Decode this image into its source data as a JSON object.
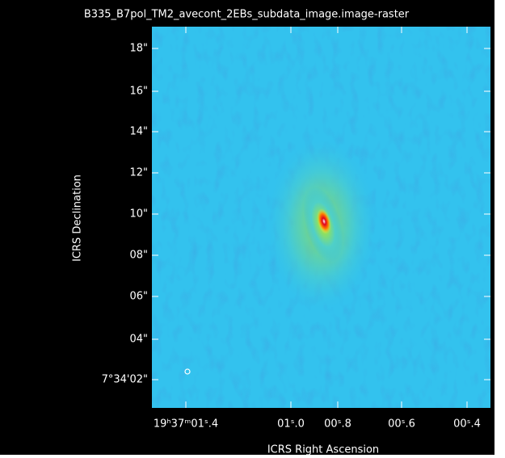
{
  "title": "B335_B7pol_TM2_avecont_2EBs_subdata_image.image-raster",
  "y_axis": {
    "label": "ICRS Declination",
    "ticks": [
      "18\"",
      "16\"",
      "14\"",
      "12\"",
      "10\"",
      "08\"",
      "06\"",
      "04\"",
      "7°34'02\""
    ]
  },
  "x_axis": {
    "label": "ICRS Right Ascension",
    "ticks": [
      "19ʰ37ᵐ01ˢ.4",
      "01ˢ.0",
      "00ˢ.8",
      "00ˢ.6",
      "00ˢ.4"
    ]
  }
}
